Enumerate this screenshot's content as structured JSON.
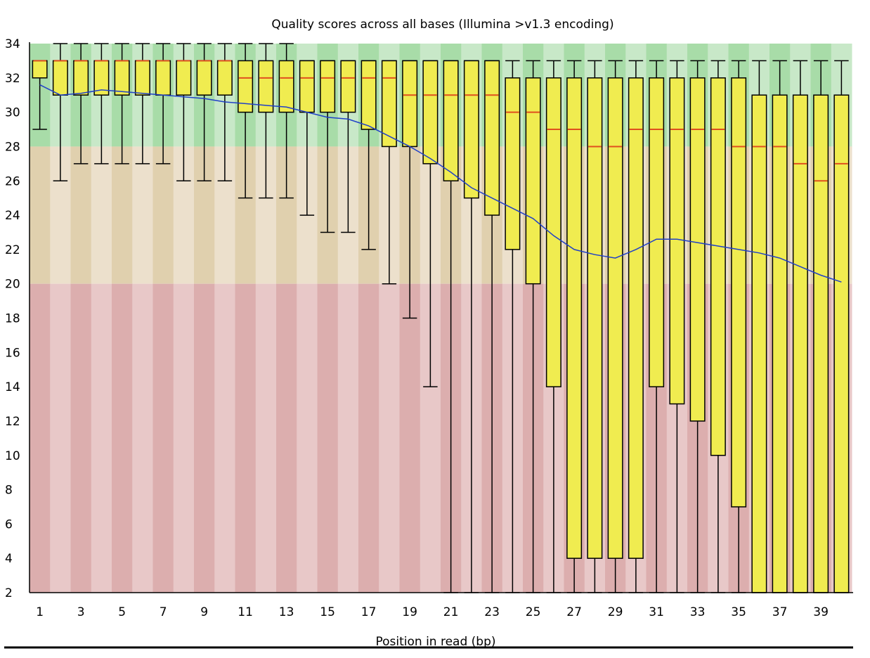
{
  "chart_data": {
    "type": "boxplot",
    "title": "Quality scores across all bases (Illumina >v1.3 encoding)",
    "xlabel": "Position in read (bp)",
    "ylabel": "",
    "ylim": [
      2,
      34
    ],
    "y_ticks": [
      2,
      4,
      6,
      8,
      10,
      12,
      14,
      16,
      18,
      20,
      22,
      24,
      26,
      28,
      30,
      32,
      34
    ],
    "x_ticks": [
      "1",
      "3",
      "5",
      "7",
      "9",
      "11",
      "13",
      "15",
      "17",
      "19",
      "21",
      "23",
      "25",
      "27",
      "29",
      "31",
      "33",
      "35",
      "37",
      "39"
    ],
    "quality_zones": [
      {
        "name": "good",
        "from": 28,
        "to": 34,
        "color_light": "#c8e8c8",
        "color_dark": "#a8dca8"
      },
      {
        "name": "reasonable",
        "from": 20,
        "to": 28,
        "color_light": "#ece0cc",
        "color_dark": "#e0d0ae"
      },
      {
        "name": "poor",
        "from": 2,
        "to": 20,
        "color_light": "#e8c8c8",
        "color_dark": "#dcaeae"
      }
    ],
    "colors": {
      "box": "#f0ec50",
      "median": "#e0501e",
      "mean_line": "#2040c8",
      "whisker": "#000000"
    },
    "positions": [
      1,
      2,
      3,
      4,
      5,
      6,
      7,
      8,
      9,
      10,
      11,
      12,
      13,
      14,
      15,
      16,
      17,
      18,
      19,
      20,
      21,
      22,
      23,
      24,
      25,
      26,
      27,
      28,
      29,
      30,
      31,
      32,
      33,
      34,
      35,
      36,
      37,
      38,
      39,
      40
    ],
    "series": {
      "whisker_low": [
        29,
        26,
        27,
        27,
        27,
        27,
        27,
        26,
        26,
        26,
        25,
        25,
        25,
        24,
        23,
        23,
        22,
        20,
        18,
        14,
        2,
        2,
        2,
        2,
        2,
        2,
        2,
        2,
        2,
        2,
        2,
        2,
        2,
        2,
        2,
        2,
        2,
        2,
        2,
        2
      ],
      "q1": [
        32,
        31,
        31,
        31,
        31,
        31,
        31,
        31,
        31,
        31,
        30,
        30,
        30,
        30,
        30,
        30,
        29,
        28,
        28,
        27,
        26,
        25,
        24,
        22,
        20,
        14,
        4,
        4,
        4,
        4,
        14,
        13,
        12,
        10,
        7,
        2,
        2,
        2,
        2,
        2
      ],
      "median": [
        33,
        33,
        33,
        33,
        33,
        33,
        33,
        33,
        33,
        33,
        32,
        32,
        32,
        32,
        32,
        32,
        32,
        32,
        31,
        31,
        31,
        31,
        31,
        30,
        30,
        29,
        29,
        28,
        28,
        29,
        29,
        29,
        29,
        29,
        28,
        28,
        28,
        27,
        26,
        27
      ],
      "q3": [
        33,
        33,
        33,
        33,
        33,
        33,
        33,
        33,
        33,
        33,
        33,
        33,
        33,
        33,
        33,
        33,
        33,
        33,
        33,
        33,
        33,
        33,
        33,
        32,
        32,
        32,
        32,
        32,
        32,
        32,
        32,
        32,
        32,
        32,
        32,
        31,
        31,
        31,
        31,
        31
      ],
      "whisker_high": [
        33,
        34,
        34,
        34,
        34,
        34,
        34,
        34,
        34,
        34,
        34,
        34,
        34,
        33,
        33,
        33,
        33,
        33,
        33,
        33,
        33,
        33,
        33,
        33,
        33,
        33,
        33,
        33,
        33,
        33,
        33,
        33,
        33,
        33,
        33,
        33,
        33,
        33,
        33,
        33
      ],
      "mean": [
        31.6,
        31.0,
        31.1,
        31.3,
        31.2,
        31.1,
        31.0,
        30.9,
        30.8,
        30.6,
        30.5,
        30.4,
        30.3,
        30.0,
        29.7,
        29.6,
        29.2,
        28.6,
        28.0,
        27.3,
        26.5,
        25.6,
        25.0,
        24.4,
        23.8,
        22.8,
        22.0,
        21.7,
        21.5,
        22.0,
        22.6,
        22.6,
        22.4,
        22.2,
        22.0,
        21.8,
        21.5,
        21.0,
        20.5,
        20.1
      ]
    }
  }
}
